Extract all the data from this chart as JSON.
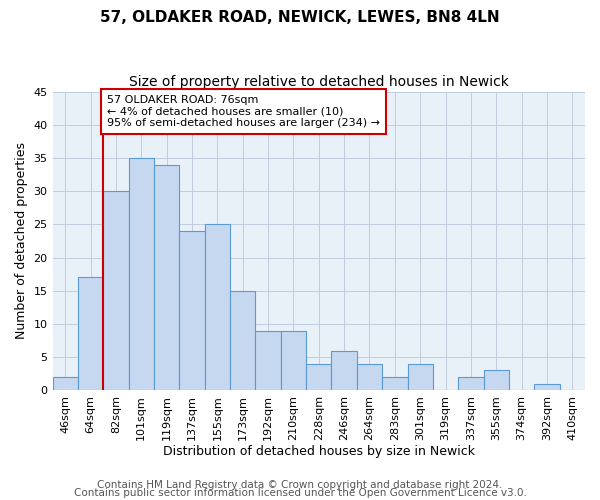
{
  "title1": "57, OLDAKER ROAD, NEWICK, LEWES, BN8 4LN",
  "title2": "Size of property relative to detached houses in Newick",
  "xlabel": "Distribution of detached houses by size in Newick",
  "ylabel": "Number of detached properties",
  "categories": [
    "46sqm",
    "64sqm",
    "82sqm",
    "101sqm",
    "119sqm",
    "137sqm",
    "155sqm",
    "173sqm",
    "192sqm",
    "210sqm",
    "228sqm",
    "246sqm",
    "264sqm",
    "283sqm",
    "301sqm",
    "319sqm",
    "337sqm",
    "355sqm",
    "374sqm",
    "392sqm",
    "410sqm"
  ],
  "values": [
    2,
    17,
    30,
    35,
    34,
    24,
    25,
    15,
    9,
    9,
    4,
    6,
    4,
    2,
    4,
    0,
    2,
    3,
    0,
    1,
    0
  ],
  "bar_color": "#c5d8f0",
  "bar_edge_color": "#5b9bd5",
  "annotation_text": "57 OLDAKER ROAD: 76sqm\n← 4% of detached houses are smaller (10)\n95% of semi-detached houses are larger (234) →",
  "annotation_box_color": "#ffffff",
  "annotation_box_edge_color": "#cc0000",
  "vline_x_index": 1.5,
  "vline_color": "#cc0000",
  "ylim": [
    0,
    45
  ],
  "yticks": [
    0,
    5,
    10,
    15,
    20,
    25,
    30,
    35,
    40,
    45
  ],
  "footer1": "Contains HM Land Registry data © Crown copyright and database right 2024.",
  "footer2": "Contains public sector information licensed under the Open Government Licence v3.0.",
  "background_color": "#ffffff",
  "axes_background": "#e8f0f8",
  "grid_color": "#c0ccdd",
  "title1_fontsize": 11,
  "title2_fontsize": 10,
  "xlabel_fontsize": 9,
  "ylabel_fontsize": 9,
  "tick_fontsize": 8,
  "annotation_fontsize": 8,
  "footer_fontsize": 7.5
}
